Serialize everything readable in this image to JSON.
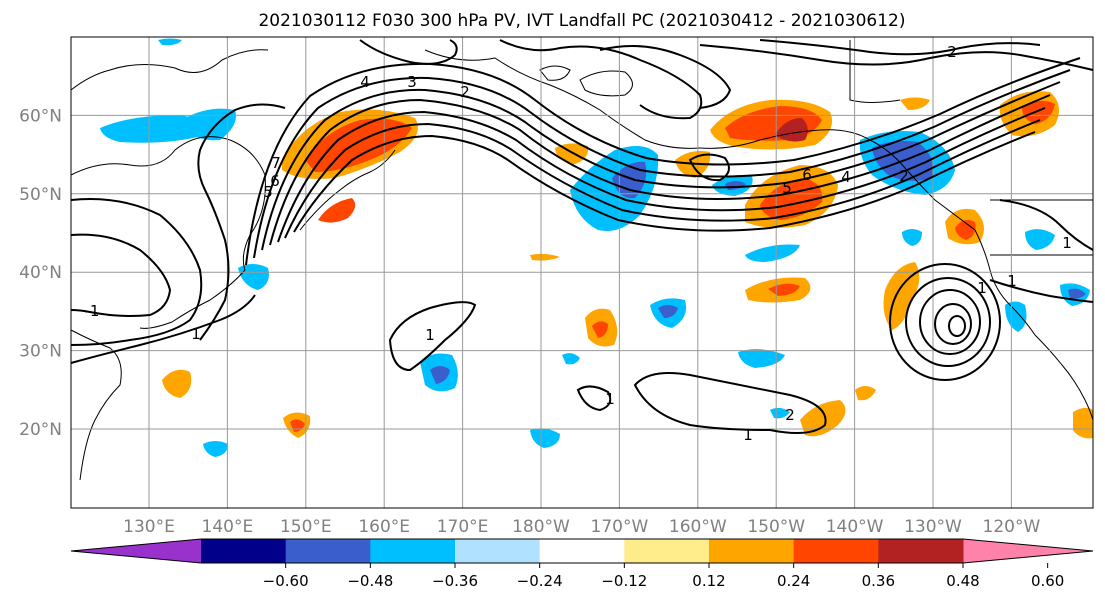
{
  "title": "2021030112 F030 300 hPa PV, IVT Landfall PC (2021030412 - 2021030612)",
  "lat_labels": [
    "20°N",
    "30°N",
    "40°N",
    "50°N",
    "60°N"
  ],
  "lon_labels": [
    "130°E",
    "140°E",
    "150°E",
    "160°E",
    "170°E",
    "180°W",
    "170°W",
    "160°W",
    "150°W",
    "140°W",
    "130°W",
    "120°W"
  ],
  "colorbar": {
    "colors": [
      "#9932cc",
      "#00008b",
      "#3a5fcd",
      "#00bfff",
      "#b0e2ff",
      "#ffffff",
      "#ffec8b",
      "#ffa500",
      "#ff4500",
      "#b22222",
      "#ff82ab"
    ],
    "under_color": "#9932cc",
    "over_color": "#ff82ab",
    "tick_labels": [
      "−0.60",
      "−0.48",
      "−0.36",
      "−0.24",
      "−0.12",
      "0.12",
      "0.24",
      "0.36",
      "0.48",
      "0.60"
    ]
  },
  "contour_labels": [
    "-1",
    "1",
    "1",
    "1",
    "1",
    "1",
    "1",
    "1",
    "2",
    "2",
    "2",
    "2",
    "3",
    "4",
    "4",
    "5",
    "5",
    "6",
    "6",
    "7"
  ]
}
